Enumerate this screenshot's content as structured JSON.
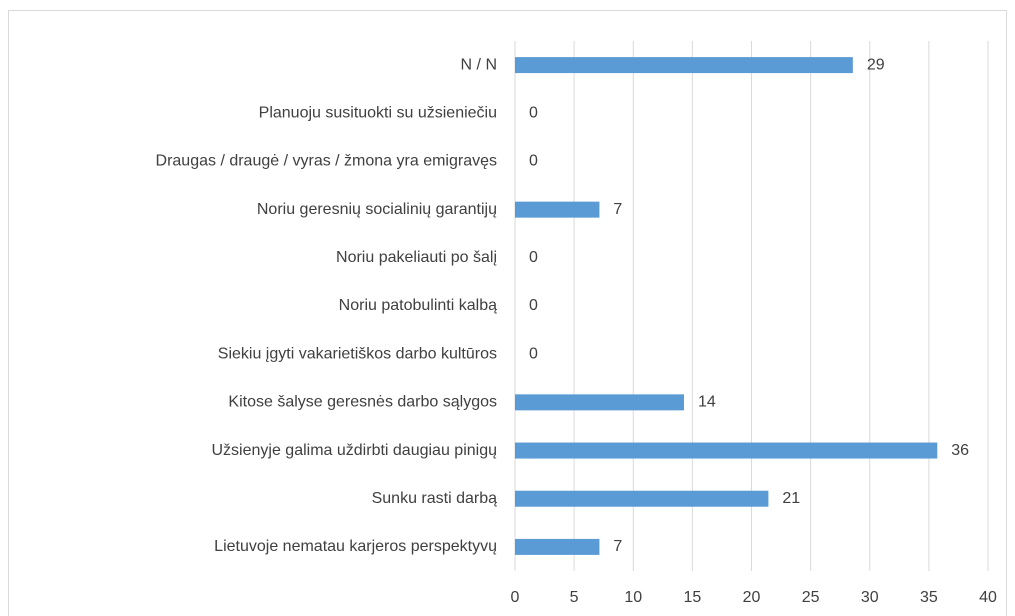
{
  "chart_data": {
    "type": "bar",
    "orientation": "horizontal",
    "categories": [
      "N / N",
      "Planuoju susituokti su užsieniečiu",
      "Draugas / draugė / vyras / žmona yra emigravęs",
      "Noriu geresnių socialinių garantijų",
      "Noriu pakeliauti po šalį",
      "Noriu patobulinti kalbą",
      "Siekiu įgyti vakarietiškos darbo kultūros",
      "Kitose šalyse geresnės darbo sąlygos",
      "Užsienyje galima uždirbti daugiau pinigų",
      "Sunku rasti darbą",
      "Lietuvoje nematau karjeros perspektyvų"
    ],
    "values": [
      28.57,
      0,
      0,
      7.14,
      0,
      0,
      0,
      14.29,
      35.71,
      21.43,
      7.14
    ],
    "value_labels": [
      "29",
      "0",
      "0",
      "7",
      "0",
      "0",
      "0",
      "14",
      "36",
      "21",
      "7"
    ],
    "color": "#5b9bd5",
    "xlim": [
      0,
      40
    ],
    "xticks": [
      0,
      5,
      10,
      15,
      20,
      25,
      30,
      35,
      40
    ],
    "grid": true
  }
}
